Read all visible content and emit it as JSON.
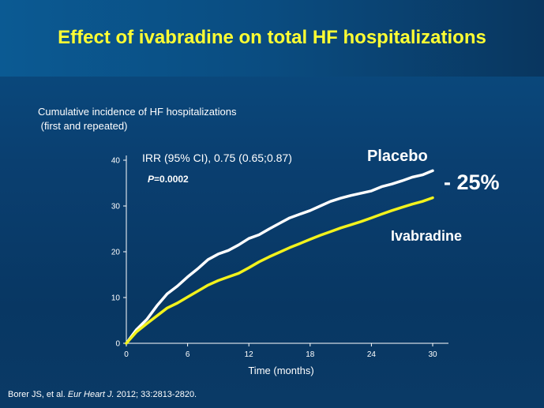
{
  "slide": {
    "title": "Effect of ivabradine on total HF hospitalizations",
    "citation_authors": "Borer JS, et al.",
    "citation_journal": "Eur Heart J.",
    "citation_rest": "2012; 33:2813-2820."
  },
  "colors": {
    "title": "#ffff33",
    "placebo": "#ffffff",
    "ivabradine": "#f2f21c",
    "reduction": "#ffff33"
  },
  "chart_data": {
    "type": "line",
    "title": "Cumulative incidence of HF hospitalizations\n (first and repeated)",
    "xlabel": "Time  (months)",
    "ylabel": "",
    "xlim": [
      0,
      30
    ],
    "ylim": [
      0,
      40
    ],
    "xticks": [
      0,
      6,
      12,
      18,
      24,
      30
    ],
    "yticks": [
      0,
      10,
      20,
      30,
      40
    ],
    "grid": false,
    "series": [
      {
        "name": "Placebo",
        "color": "#ffffff",
        "x": [
          0,
          1,
          2,
          3,
          4,
          5,
          6,
          7,
          8,
          9,
          10,
          11,
          12,
          13,
          14,
          15,
          16,
          17,
          18,
          19,
          20,
          21,
          22,
          23,
          24,
          25,
          26,
          27,
          28,
          29,
          30
        ],
        "y": [
          0,
          3,
          5.2,
          8.2,
          10.8,
          12.5,
          14.5,
          16.3,
          18.3,
          19.5,
          20.3,
          21.5,
          22.9,
          23.7,
          25,
          26.2,
          27.4,
          28.2,
          29,
          30,
          31,
          31.7,
          32.3,
          32.8,
          33.3,
          34.2,
          34.8,
          35.5,
          36.3,
          36.8,
          37.7
        ]
      },
      {
        "name": "Ivabradine",
        "color": "#f2f21c",
        "x": [
          0,
          1,
          2,
          3,
          4,
          5,
          6,
          7,
          8,
          9,
          10,
          11,
          12,
          13,
          14,
          15,
          16,
          17,
          18,
          19,
          20,
          21,
          22,
          23,
          24,
          25,
          26,
          27,
          28,
          29,
          30
        ],
        "y": [
          0,
          2.5,
          4.3,
          6,
          7.7,
          8.8,
          10.1,
          11.4,
          12.7,
          13.7,
          14.5,
          15.3,
          16.5,
          17.8,
          18.9,
          19.9,
          20.9,
          21.8,
          22.7,
          23.6,
          24.4,
          25.2,
          25.9,
          26.6,
          27.4,
          28.2,
          29,
          29.7,
          30.4,
          31,
          31.8
        ]
      }
    ],
    "annotations": {
      "irr": "IRR (95% CI), 0.75 (0.65;0.87)",
      "p_label": "P",
      "p_value": "=0.0002",
      "reduction": "- 25%"
    }
  }
}
